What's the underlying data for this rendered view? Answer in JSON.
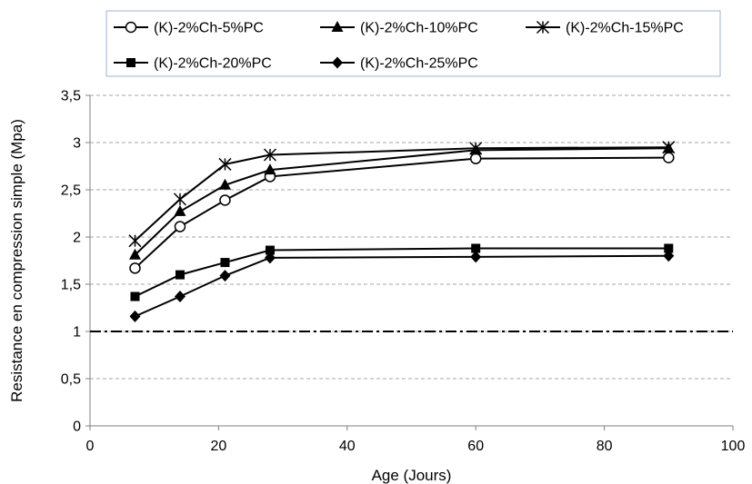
{
  "chart_data": {
    "type": "line",
    "title": "",
    "xlabel": "Age (Jours)",
    "ylabel": "Resistance en compression simple (Mpa)",
    "xlim": [
      0,
      100
    ],
    "ylim": [
      0,
      3.5
    ],
    "xticks": [
      0,
      20,
      40,
      60,
      80,
      100
    ],
    "yticks": [
      0,
      0.5,
      1,
      1.5,
      2,
      2.5,
      3,
      3.5
    ],
    "xtick_labels": [
      "0",
      "20",
      "40",
      "60",
      "80",
      "100"
    ],
    "ytick_labels": [
      "0",
      "0,5",
      "1",
      "1,5",
      "2",
      "2,5",
      "3",
      "3,5"
    ],
    "grid": "horizontal dashed",
    "legend_position": "top",
    "series": [
      {
        "name": "(K)-2%Ch-5%PC",
        "marker": "open-circle",
        "x": [
          7,
          14,
          21,
          28,
          60,
          90
        ],
        "y": [
          1.67,
          2.11,
          2.39,
          2.64,
          2.83,
          2.84
        ]
      },
      {
        "name": "(K)-2%Ch-10%PC",
        "marker": "triangle",
        "x": [
          7,
          14,
          21,
          28,
          60,
          90
        ],
        "y": [
          1.81,
          2.27,
          2.55,
          2.71,
          2.92,
          2.94
        ]
      },
      {
        "name": "(K)-2%Ch-15%PC",
        "marker": "asterisk",
        "x": [
          7,
          14,
          21,
          28,
          60,
          90
        ],
        "y": [
          1.96,
          2.4,
          2.77,
          2.87,
          2.94,
          2.95
        ]
      },
      {
        "name": "(K)-2%Ch-20%PC",
        "marker": "square",
        "x": [
          7,
          14,
          21,
          28,
          60,
          90
        ],
        "y": [
          1.37,
          1.6,
          1.73,
          1.86,
          1.88,
          1.88
        ]
      },
      {
        "name": "(K)-2%Ch-25%PC",
        "marker": "diamond",
        "x": [
          7,
          14,
          21,
          28,
          60,
          90
        ],
        "y": [
          1.16,
          1.37,
          1.59,
          1.78,
          1.79,
          1.8
        ]
      }
    ],
    "reference_line": {
      "y": 1,
      "style": "dash-dot"
    }
  }
}
